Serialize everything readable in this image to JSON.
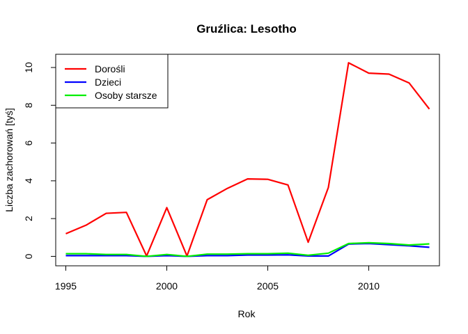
{
  "chart_data": {
    "type": "line",
    "title": "Gruźlica: Lesotho",
    "xlabel": "Rok",
    "ylabel": "Liczba zachorowań [tyś]",
    "xlim": [
      1994.5,
      2013.5
    ],
    "ylim": [
      -0.5,
      10.7
    ],
    "x": [
      1995,
      1996,
      1997,
      1998,
      1999,
      2000,
      2001,
      2002,
      2003,
      2004,
      2005,
      2006,
      2007,
      2008,
      2009,
      2010,
      2011,
      2012,
      2013
    ],
    "x_ticks": [
      1995,
      2000,
      2005,
      2010
    ],
    "y_ticks": [
      0,
      2,
      4,
      6,
      8,
      10
    ],
    "legend_position": "top-left",
    "grid": false,
    "series": [
      {
        "name": "Dorośli",
        "color": "#ff0000",
        "values": [
          1.2,
          1.65,
          2.28,
          2.33,
          0.02,
          2.58,
          0.02,
          3.0,
          3.6,
          4.1,
          4.08,
          3.78,
          0.75,
          3.65,
          10.25,
          9.7,
          9.65,
          9.18,
          7.8
        ]
      },
      {
        "name": "Dzieci",
        "color": "#0000ff",
        "values": [
          0.04,
          0.04,
          0.04,
          0.04,
          0.0,
          0.04,
          0.0,
          0.04,
          0.04,
          0.07,
          0.07,
          0.08,
          0.02,
          0.02,
          0.65,
          0.68,
          0.62,
          0.56,
          0.48
        ]
      },
      {
        "name": "Osoby starsze",
        "color": "#00ee00",
        "values": [
          0.14,
          0.14,
          0.1,
          0.1,
          0.0,
          0.1,
          0.0,
          0.12,
          0.12,
          0.14,
          0.14,
          0.17,
          0.06,
          0.17,
          0.68,
          0.72,
          0.68,
          0.6,
          0.66
        ]
      }
    ]
  }
}
